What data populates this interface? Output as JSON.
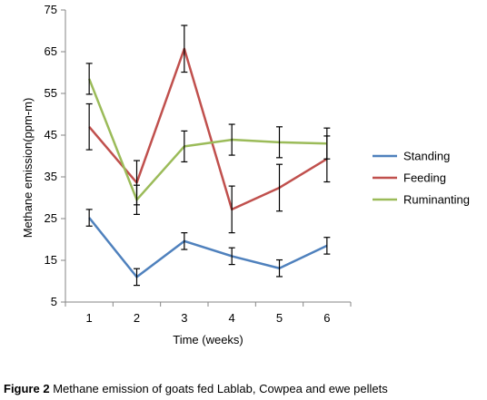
{
  "caption": {
    "label": "Figure 2",
    "text": " Methane emission of goats fed Lablab, Cowpea and ewe pellets"
  },
  "chart_data": {
    "type": "line",
    "x": [
      1,
      2,
      3,
      4,
      5,
      6
    ],
    "xlabel": "Time (weeks)",
    "ylabel": "Methane emission(ppm-m)",
    "ylim": [
      5,
      75
    ],
    "yticks": [
      5,
      15,
      25,
      35,
      45,
      55,
      65,
      75
    ],
    "grid": false,
    "legend_position": "right",
    "error_bars": true,
    "series": [
      {
        "name": "Standing",
        "color": "#4f81bd",
        "values": [
          25.2,
          11.0,
          19.6,
          16.0,
          13.1,
          18.5
        ],
        "errors": [
          2.0,
          2.0,
          2.0,
          2.0,
          2.0,
          2.0
        ]
      },
      {
        "name": "Feeding",
        "color": "#c0504d",
        "values": [
          47.0,
          33.6,
          65.7,
          27.2,
          32.4,
          39.3
        ],
        "errors": [
          5.5,
          5.3,
          5.6,
          5.6,
          5.6,
          5.5
        ]
      },
      {
        "name": "Ruminanting",
        "color": "#9bbb59",
        "values": [
          58.5,
          29.5,
          42.3,
          43.9,
          43.3,
          43.0
        ],
        "errors": [
          3.7,
          3.5,
          3.7,
          3.7,
          3.7,
          3.7
        ]
      }
    ]
  }
}
